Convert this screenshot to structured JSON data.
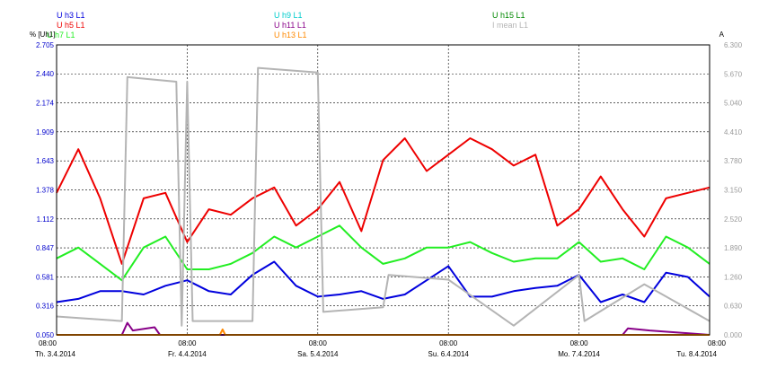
{
  "chart_data": {
    "type": "line",
    "title": "",
    "left_axis": {
      "label": "% [Uh1]",
      "color": "#0000cc",
      "ylim": [
        0.05,
        2.705
      ],
      "ticks": [
        "0.050",
        "0.316",
        "0.581",
        "0.847",
        "1.112",
        "1.378",
        "1.643",
        "1.909",
        "2.174",
        "2.440",
        "2.705"
      ]
    },
    "right_axis": {
      "label": "A",
      "color": "#9a9a9a",
      "ylim": [
        0,
        6.3
      ],
      "ticks": [
        "0.000",
        "0.630",
        "1.260",
        "1.890",
        "2.520",
        "3.150",
        "3.780",
        "4.410",
        "5.040",
        "5.670",
        "6.300"
      ]
    },
    "x_axis": {
      "time_labels": [
        "08:00",
        "08:00",
        "08:00",
        "08:00",
        "08:00",
        "08:00"
      ],
      "date_labels": [
        "Th. 3.4.2014",
        "Fr. 4.4.2014",
        "Sa. 5.4.2014",
        "Su. 6.4.2014",
        "Mo. 7.4.2014",
        "Tu. 8.4.2014"
      ],
      "xlim": [
        "2014-04-03T08:00",
        "2014-04-08T08:00"
      ]
    },
    "grid": true,
    "series_labels": [
      "U h3 L1",
      "U h5 L1",
      "U h7 L1",
      "U h9 L1",
      "U h11 L1",
      "U h13 L1",
      "U h15 L1",
      "I mean L1"
    ],
    "series": [
      {
        "name": "U h3 L1",
        "axis": "left",
        "color": "#0000dd",
        "x": [
          "2014-04-03T08:00",
          "2014-04-03T12:00",
          "2014-04-03T16:00",
          "2014-04-03T20:00",
          "2014-04-04T00:00",
          "2014-04-04T04:00",
          "2014-04-04T08:00",
          "2014-04-04T12:00",
          "2014-04-04T16:00",
          "2014-04-04T20:00",
          "2014-04-05T00:00",
          "2014-04-05T04:00",
          "2014-04-05T08:00",
          "2014-04-05T12:00",
          "2014-04-05T16:00",
          "2014-04-05T20:00",
          "2014-04-06T00:00",
          "2014-04-06T04:00",
          "2014-04-06T08:00",
          "2014-04-06T12:00",
          "2014-04-06T16:00",
          "2014-04-06T20:00",
          "2014-04-07T00:00",
          "2014-04-07T04:00",
          "2014-04-07T08:00",
          "2014-04-07T12:00",
          "2014-04-07T16:00",
          "2014-04-07T20:00",
          "2014-04-08T00:00",
          "2014-04-08T04:00",
          "2014-04-08T08:00"
        ],
        "values": [
          0.35,
          0.38,
          0.45,
          0.45,
          0.42,
          0.5,
          0.55,
          0.45,
          0.42,
          0.6,
          0.72,
          0.5,
          0.4,
          0.42,
          0.45,
          0.38,
          0.42,
          0.55,
          0.68,
          0.4,
          0.4,
          0.45,
          0.48,
          0.5,
          0.6,
          0.35,
          0.42,
          0.35,
          0.62,
          0.58,
          0.4
        ]
      },
      {
        "name": "U h5 L1",
        "axis": "left",
        "color": "#ee0000",
        "x": [
          "2014-04-03T08:00",
          "2014-04-03T12:00",
          "2014-04-03T16:00",
          "2014-04-03T20:00",
          "2014-04-04T00:00",
          "2014-04-04T04:00",
          "2014-04-04T08:00",
          "2014-04-04T12:00",
          "2014-04-04T16:00",
          "2014-04-04T20:00",
          "2014-04-05T00:00",
          "2014-04-05T04:00",
          "2014-04-05T08:00",
          "2014-04-05T12:00",
          "2014-04-05T16:00",
          "2014-04-05T20:00",
          "2014-04-06T00:00",
          "2014-04-06T04:00",
          "2014-04-06T08:00",
          "2014-04-06T12:00",
          "2014-04-06T16:00",
          "2014-04-06T20:00",
          "2014-04-07T00:00",
          "2014-04-07T04:00",
          "2014-04-07T08:00",
          "2014-04-07T12:00",
          "2014-04-07T16:00",
          "2014-04-07T20:00",
          "2014-04-08T00:00",
          "2014-04-08T04:00",
          "2014-04-08T08:00"
        ],
        "values": [
          1.35,
          1.75,
          1.3,
          0.7,
          1.3,
          1.35,
          0.9,
          1.2,
          1.15,
          1.3,
          1.4,
          1.05,
          1.2,
          1.45,
          1.0,
          1.65,
          1.85,
          1.55,
          1.7,
          1.85,
          1.75,
          1.6,
          1.7,
          1.05,
          1.2,
          1.5,
          1.2,
          0.95,
          1.3,
          1.35,
          1.4
        ]
      },
      {
        "name": "U h7 L1",
        "axis": "left",
        "color": "#22ee22",
        "x": [
          "2014-04-03T08:00",
          "2014-04-03T12:00",
          "2014-04-03T16:00",
          "2014-04-03T20:00",
          "2014-04-04T00:00",
          "2014-04-04T04:00",
          "2014-04-04T08:00",
          "2014-04-04T12:00",
          "2014-04-04T16:00",
          "2014-04-04T20:00",
          "2014-04-05T00:00",
          "2014-04-05T04:00",
          "2014-04-05T08:00",
          "2014-04-05T12:00",
          "2014-04-05T16:00",
          "2014-04-05T20:00",
          "2014-04-06T00:00",
          "2014-04-06T04:00",
          "2014-04-06T08:00",
          "2014-04-06T12:00",
          "2014-04-06T16:00",
          "2014-04-06T20:00",
          "2014-04-07T00:00",
          "2014-04-07T04:00",
          "2014-04-07T08:00",
          "2014-04-07T12:00",
          "2014-04-07T16:00",
          "2014-04-07T20:00",
          "2014-04-08T00:00",
          "2014-04-08T04:00",
          "2014-04-08T08:00"
        ],
        "values": [
          0.75,
          0.85,
          0.7,
          0.55,
          0.85,
          0.95,
          0.65,
          0.65,
          0.7,
          0.8,
          0.95,
          0.85,
          0.95,
          1.05,
          0.85,
          0.7,
          0.75,
          0.85,
          0.85,
          0.9,
          0.8,
          0.72,
          0.75,
          0.75,
          0.9,
          0.72,
          0.75,
          0.65,
          0.95,
          0.85,
          0.7
        ]
      },
      {
        "name": "U h11 L1",
        "axis": "left",
        "color": "#880088",
        "x": [
          "2014-04-03T08:00",
          "2014-04-03T20:00",
          "2014-04-03T21:00",
          "2014-04-03T22:00",
          "2014-04-04T02:00",
          "2014-04-04T03:00",
          "2014-04-05T16:00",
          "2014-04-06T08:00",
          "2014-04-07T16:00",
          "2014-04-07T17:00",
          "2014-04-07T21:00",
          "2014-04-08T08:00"
        ],
        "values": [
          0.05,
          0.05,
          0.16,
          0.09,
          0.12,
          0.05,
          0.05,
          0.05,
          0.05,
          0.11,
          0.09,
          0.05
        ]
      },
      {
        "name": "U h13 L1",
        "axis": "left",
        "color": "#ff8800",
        "x": [
          "2014-04-03T08:00",
          "2014-04-04T14:00",
          "2014-04-04T14:30",
          "2014-04-04T15:00",
          "2014-04-08T08:00"
        ],
        "values": [
          0.05,
          0.05,
          0.1,
          0.05,
          0.05
        ]
      },
      {
        "name": "I mean L1",
        "axis": "right",
        "color": "#b4b4b4",
        "x": [
          "2014-04-03T08:00",
          "2014-04-03T20:00",
          "2014-04-03T21:00",
          "2014-04-04T06:00",
          "2014-04-04T07:00",
          "2014-04-04T08:00",
          "2014-04-04T09:00",
          "2014-04-04T20:00",
          "2014-04-04T21:00",
          "2014-04-05T08:00",
          "2014-04-05T09:00",
          "2014-04-05T20:00",
          "2014-04-05T21:00",
          "2014-04-06T08:00",
          "2014-04-06T20:00",
          "2014-04-07T08:00",
          "2014-04-07T09:00",
          "2014-04-07T20:00",
          "2014-04-08T08:00"
        ],
        "values": [
          0.4,
          0.3,
          5.6,
          5.5,
          0.2,
          5.5,
          0.3,
          0.3,
          5.8,
          5.7,
          0.5,
          0.6,
          1.3,
          1.2,
          0.2,
          1.3,
          0.3,
          1.1,
          0.3
        ]
      }
    ]
  }
}
